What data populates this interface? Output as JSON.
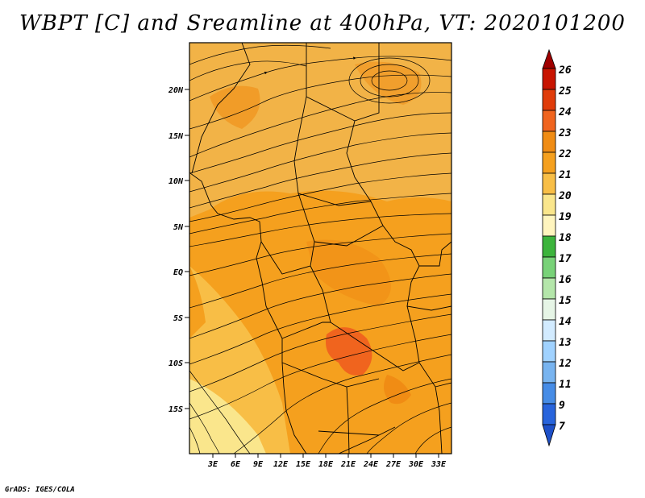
{
  "title": "WBPT [C] and Sreamline at 400hPa, VT: 2020101200",
  "credit": "GrADS: IGES/COLA",
  "map": {
    "lat_labels": [
      "20N",
      "15N",
      "10N",
      "5N",
      "EQ",
      "5S",
      "10S",
      "15S"
    ],
    "lon_labels": [
      "3E",
      "6E",
      "9E",
      "12E",
      "15E",
      "18E",
      "21E",
      "24E",
      "27E",
      "30E",
      "33E"
    ],
    "background_color": "#f2b347"
  },
  "colorbar": {
    "levels": [
      "26",
      "25",
      "24",
      "23",
      "22",
      "21",
      "20",
      "19",
      "18",
      "17",
      "16",
      "15",
      "14",
      "13",
      "12",
      "11",
      "9",
      "7"
    ],
    "colors": [
      "#a00000",
      "#c81400",
      "#e03c0a",
      "#f0641e",
      "#f08c14",
      "#f5a01e",
      "#f8be46",
      "#fae68c",
      "#fff5be",
      "#3cb43c",
      "#78d278",
      "#b4e6aa",
      "#e6f5e6",
      "#d2ebff",
      "#a0d2ff",
      "#78b4f0",
      "#468ce6",
      "#2864dc",
      "#1e50c8"
    ]
  }
}
